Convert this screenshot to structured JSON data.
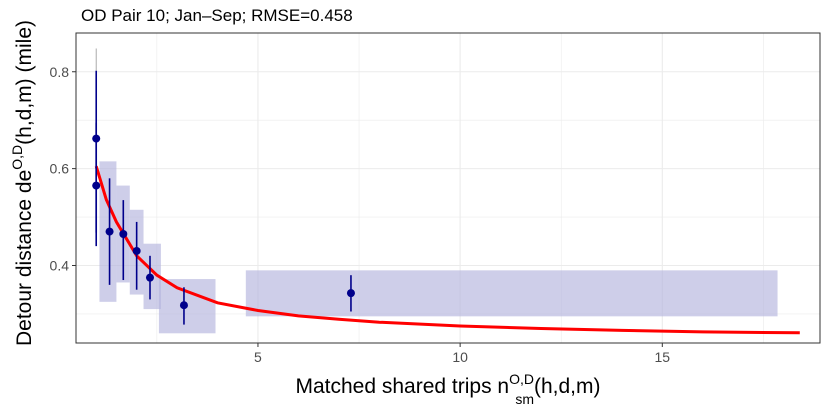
{
  "chart_data": {
    "type": "scatter",
    "title": "OD Pair 10; Jan–Sep; RMSE=0.458",
    "xlabel": {
      "prefix": "Matched shared trips n",
      "sup": "O,D",
      "sub": "sm",
      "suffix": "(h,d,m)"
    },
    "ylabel": {
      "prefix": "Detour distance de",
      "sup": "O,D",
      "suffix": "(h,d,m) (mile)"
    },
    "xlim": [
      0.5,
      18.9
    ],
    "ylim": [
      0.24,
      0.88
    ],
    "x_ticks": [
      5,
      10,
      15
    ],
    "x_tick_labels": [
      "5",
      "10",
      "15"
    ],
    "y_ticks": [
      0.4,
      0.6,
      0.8
    ],
    "y_tick_labels": [
      "0.4",
      "0.6",
      "0.8"
    ],
    "grid": true,
    "colors": {
      "points": "#00008B",
      "fit": "#FF0000",
      "rect": "#B3B3DD",
      "grid": "#EBEBEB",
      "panel_border": "#333333"
    },
    "points": [
      {
        "x": 1.0,
        "y": 0.662,
        "ymin": 0.468,
        "ymax": 0.802
      },
      {
        "x": 1.0,
        "y": 0.565,
        "ymin": 0.44,
        "ymax": 0.695
      },
      {
        "x": 1.33,
        "y": 0.47,
        "ymin": 0.36,
        "ymax": 0.58
      },
      {
        "x": 1.67,
        "y": 0.465,
        "ymin": 0.37,
        "ymax": 0.535
      },
      {
        "x": 2.0,
        "y": 0.43,
        "ymin": 0.35,
        "ymax": 0.49
      },
      {
        "x": 2.33,
        "y": 0.375,
        "ymin": 0.33,
        "ymax": 0.42
      },
      {
        "x": 3.17,
        "y": 0.318,
        "ymin": 0.278,
        "ymax": 0.355
      },
      {
        "x": 7.3,
        "y": 0.343,
        "ymin": 0.305,
        "ymax": 0.38
      }
    ],
    "faint_whisker": {
      "x": 1.0,
      "ymin": 0.802,
      "ymax": 0.848
    },
    "bins": [
      {
        "xmin": 1.08,
        "xmax": 1.5,
        "ymin": 0.325,
        "ymax": 0.615
      },
      {
        "xmin": 1.5,
        "xmax": 1.83,
        "ymin": 0.365,
        "ymax": 0.565
      },
      {
        "xmin": 1.83,
        "xmax": 2.17,
        "ymin": 0.34,
        "ymax": 0.515
      },
      {
        "xmin": 2.17,
        "xmax": 2.6,
        "ymin": 0.31,
        "ymax": 0.445
      },
      {
        "xmin": 2.55,
        "xmax": 3.95,
        "ymin": 0.26,
        "ymax": 0.372
      },
      {
        "xmin": 4.7,
        "xmax": 17.85,
        "ymin": 0.295,
        "ymax": 0.39
      }
    ],
    "fit_curve": [
      {
        "x": 1.0,
        "y": 0.605
      },
      {
        "x": 1.25,
        "y": 0.536
      },
      {
        "x": 1.5,
        "y": 0.49
      },
      {
        "x": 2.0,
        "y": 0.42
      },
      {
        "x": 2.5,
        "y": 0.38
      },
      {
        "x": 3.0,
        "y": 0.354
      },
      {
        "x": 4.0,
        "y": 0.323
      },
      {
        "x": 5.0,
        "y": 0.307
      },
      {
        "x": 6.0,
        "y": 0.296
      },
      {
        "x": 7.0,
        "y": 0.289
      },
      {
        "x": 8.0,
        "y": 0.283
      },
      {
        "x": 10.0,
        "y": 0.275
      },
      {
        "x": 12.0,
        "y": 0.27
      },
      {
        "x": 14.0,
        "y": 0.266
      },
      {
        "x": 16.0,
        "y": 0.263
      },
      {
        "x": 18.4,
        "y": 0.261
      }
    ]
  }
}
